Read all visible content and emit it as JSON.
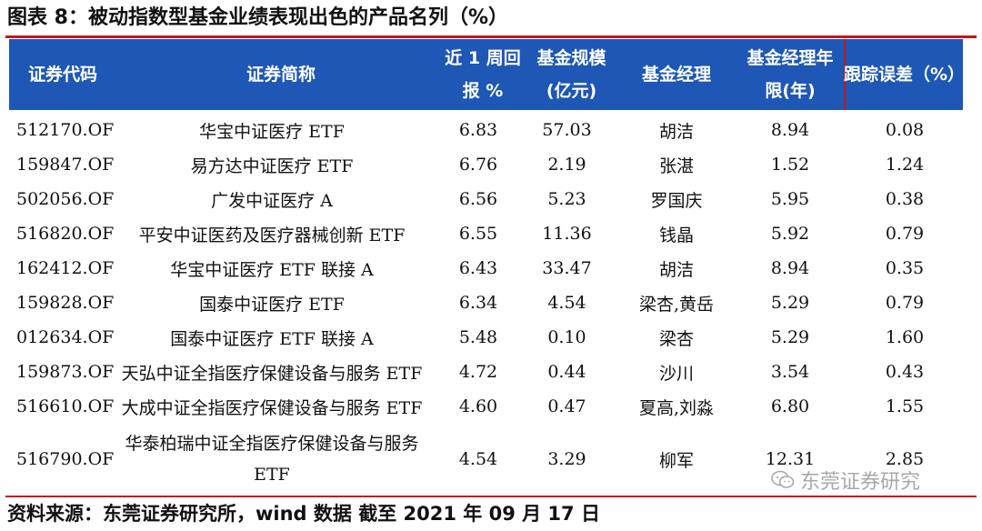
{
  "title": "图表 8：被动指数型基金业绩表现出色的产品名列（%）",
  "headers": {
    "code": "证券代码",
    "name": "证券简称",
    "return_line1": "近 1 周回",
    "return_line2": "报 %",
    "size_line1": "基金规模",
    "size_line2": "(亿元)",
    "manager": "基金经理",
    "years_line1": "基金经理年",
    "years_line2": "限(年)",
    "tracking_error": "跟踪误差（%）"
  },
  "rows": [
    {
      "code": "512170.OF",
      "name": "华宝中证医疗 ETF",
      "return": "6.83",
      "size": "57.03",
      "manager": "胡洁",
      "years": "8.94",
      "error": "0.08"
    },
    {
      "code": "159847.OF",
      "name": "易方达中证医疗 ETF",
      "return": "6.76",
      "size": "2.19",
      "manager": "张湛",
      "years": "1.52",
      "error": "1.24"
    },
    {
      "code": "502056.OF",
      "name": "广发中证医疗 A",
      "return": "6.56",
      "size": "5.23",
      "manager": "罗国庆",
      "years": "5.95",
      "error": "0.38"
    },
    {
      "code": "516820.OF",
      "name": "平安中证医药及医疗器械创新 ETF",
      "return": "6.55",
      "size": "11.36",
      "manager": "钱晶",
      "years": "5.92",
      "error": "0.79"
    },
    {
      "code": "162412.OF",
      "name": "华宝中证医疗 ETF 联接 A",
      "return": "6.43",
      "size": "33.47",
      "manager": "胡洁",
      "years": "8.94",
      "error": "0.35"
    },
    {
      "code": "159828.OF",
      "name": "国泰中证医疗 ETF",
      "return": "6.34",
      "size": "4.54",
      "manager": "梁杏,黄岳",
      "years": "5.29",
      "error": "0.79"
    },
    {
      "code": "012634.OF",
      "name": "国泰中证医疗 ETF 联接 A",
      "return": "5.48",
      "size": "0.10",
      "manager": "梁杏",
      "years": "5.29",
      "error": "1.60"
    },
    {
      "code": "159873.OF",
      "name": "天弘中证全指医疗保健设备与服务 ETF",
      "return": "4.72",
      "size": "0.44",
      "manager": "沙川",
      "years": "3.54",
      "error": "0.43"
    },
    {
      "code": "516610.OF",
      "name": "大成中证全指医疗保健设备与服务 ETF",
      "return": "4.60",
      "size": "0.47",
      "manager": "夏高,刘淼",
      "years": "6.80",
      "error": "1.55"
    },
    {
      "code": "516790.OF",
      "name_line1": "华泰柏瑞中证全指医疗保健设备与服务",
      "name_line2": "ETF",
      "return": "4.54",
      "size": "3.29",
      "manager": "柳军",
      "years": "12.31",
      "error": "2.85"
    }
  ],
  "source": "资料来源：东莞证券研究所，wind 数据   截至 2021 年 09 月 17 日",
  "watermark": "东莞证券研究",
  "colors": {
    "header_bg": "#1e57b5",
    "accent_red": "#c0181d"
  }
}
